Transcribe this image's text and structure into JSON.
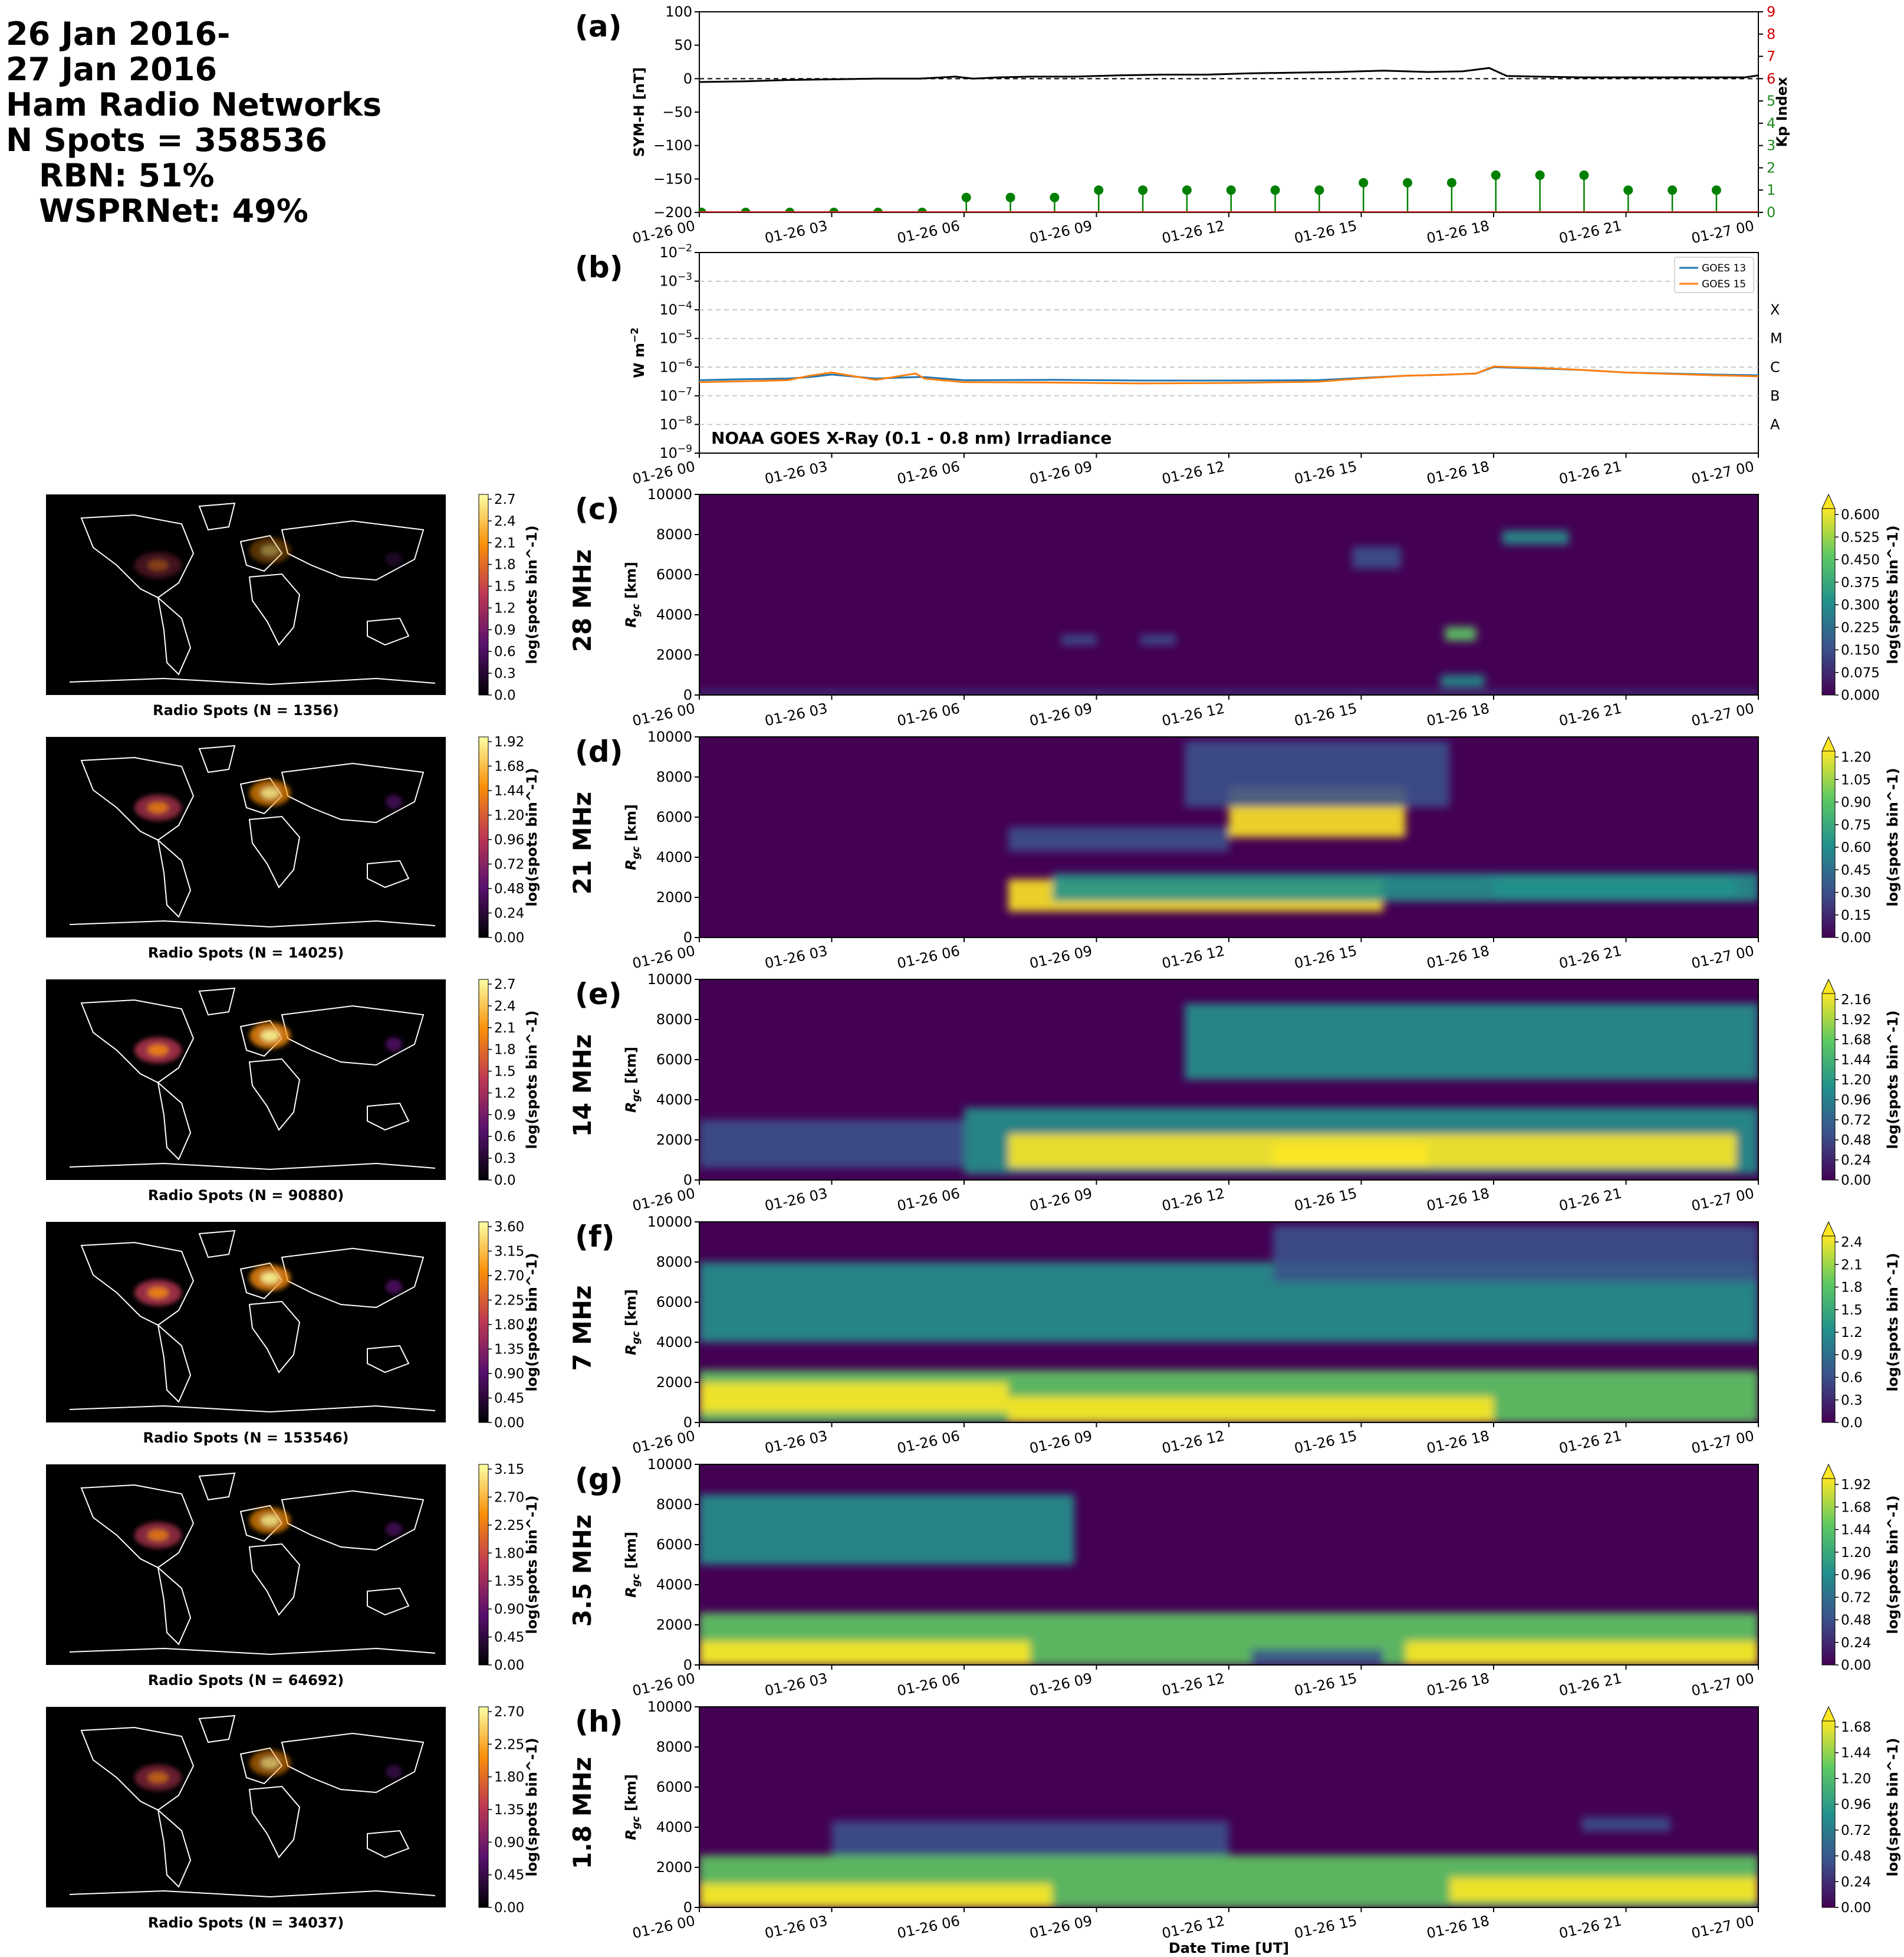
{
  "header": {
    "lines": [
      "26 Jan 2016-",
      "27 Jan 2016",
      "Ham Radio Networks",
      "N Spots = 358536",
      "RBN: 51%",
      "WSPRNet: 49%"
    ]
  },
  "time_axis": {
    "ticks": [
      "01-26 00",
      "01-26 03",
      "01-26 06",
      "01-26 09",
      "01-26 12",
      "01-26 15",
      "01-26 18",
      "01-26 21",
      "01-27 00"
    ],
    "xlabel": "Date Time [UT]"
  },
  "colors": {
    "goes13": "#1f77b4",
    "goes15": "#ff7f0e",
    "kp_stem": "#008000",
    "kp_axis": "#d40000",
    "map_bg": "#000000",
    "coast": "#ffffff"
  },
  "chart_data": [
    {
      "id": "a",
      "type": "line",
      "panel_letter": "(a)",
      "ylabel": "SYM-H [nT]",
      "ylim": [
        -200,
        100
      ],
      "yticks": [
        "100",
        "50",
        "0",
        "−50",
        "−100",
        "−150",
        "−200"
      ],
      "y2label": "Kp Index",
      "y2lim": [
        0,
        9
      ],
      "y2ticks": [
        "0",
        "1",
        "2",
        "3",
        "4",
        "5",
        "6",
        "7",
        "8",
        "9"
      ],
      "symh": {
        "x": [
          0,
          1,
          2,
          3,
          4,
          5,
          5.8,
          6.2,
          6.8,
          7.5,
          8.5,
          9.5,
          10.5,
          11.5,
          12.5,
          13.5,
          14.5,
          15.5,
          16.5,
          17.3,
          17.9,
          18.3,
          19,
          20,
          21,
          22,
          23,
          23.7,
          24
        ],
        "y": [
          -5,
          -4,
          -2,
          -1,
          0,
          0,
          3,
          0,
          2,
          3,
          3,
          5,
          6,
          6,
          8,
          9,
          10,
          12,
          10,
          11,
          16,
          4,
          3,
          2,
          2,
          2,
          2,
          2,
          5
        ]
      },
      "kp": {
        "x": [
          0,
          1,
          2,
          3,
          4,
          5,
          6,
          7,
          8,
          9,
          10,
          11,
          12,
          13,
          14,
          15,
          16,
          17,
          18,
          19,
          20,
          21,
          22,
          23
        ],
        "y": [
          0,
          0,
          0,
          0,
          0,
          0,
          0.67,
          0.67,
          0.67,
          1,
          1,
          1,
          1,
          1,
          1,
          1.33,
          1.33,
          1.33,
          1.67,
          1.67,
          1.67,
          1,
          1,
          1
        ]
      }
    },
    {
      "id": "b",
      "type": "line",
      "panel_letter": "(b)",
      "ylabel": "W m^-2",
      "yscale": "log",
      "ylim": [
        1e-09,
        0.01
      ],
      "yticks": [
        "10^-2",
        "10^-3",
        "10^-4",
        "10^-5",
        "10^-6",
        "10^-7",
        "10^-8",
        "10^-9"
      ],
      "flare_classes": [
        "X",
        "M",
        "C",
        "B",
        "A"
      ],
      "annotation": "NOAA GOES X-Ray (0.1 - 0.8 nm) Irradiance",
      "legend_position": "top-right",
      "series": [
        {
          "name": "GOES 13",
          "x": [
            0,
            1,
            2,
            2.5,
            3,
            4,
            4.9,
            5.1,
            6,
            8,
            10,
            12,
            14,
            15,
            16,
            17,
            17.6,
            18,
            19,
            20,
            21,
            22,
            23,
            24
          ],
          "y": [
            3.5e-07,
            3.8e-07,
            4e-07,
            4.5e-07,
            5.5e-07,
            4e-07,
            4.5e-07,
            4.5e-07,
            3.5e-07,
            3.6e-07,
            3.4e-07,
            3.4e-07,
            3.5e-07,
            4.2e-07,
            5e-07,
            5.5e-07,
            6e-07,
            1e-06,
            9e-07,
            8e-07,
            6.5e-07,
            6e-07,
            5.5e-07,
            5.2e-07
          ]
        },
        {
          "name": "GOES 15",
          "x": [
            0,
            1,
            2,
            2.5,
            3,
            4,
            4.9,
            5.1,
            6,
            8,
            10,
            12,
            14,
            15,
            16,
            17,
            17.6,
            18,
            19,
            20,
            21,
            22,
            23,
            24
          ],
          "y": [
            3e-07,
            3.2e-07,
            3.5e-07,
            5e-07,
            6.5e-07,
            3.6e-07,
            6e-07,
            4e-07,
            3e-07,
            2.9e-07,
            2.7e-07,
            2.8e-07,
            3.1e-07,
            4e-07,
            5e-07,
            5.5e-07,
            6e-07,
            1.05e-06,
            9.5e-07,
            8e-07,
            6.5e-07,
            5.8e-07,
            5.2e-07,
            4.8e-07
          ]
        }
      ]
    },
    {
      "id": "c",
      "type": "heatmap",
      "panel_letter": "(c)",
      "band": "28 MHz",
      "ylabel": "R_gc [km]",
      "ylim": [
        0,
        10000
      ],
      "yticks": [
        "0",
        "2000",
        "4000",
        "6000",
        "8000",
        "10000"
      ],
      "cbar_label": "log(spots bin^-1)",
      "cbar_ticks": [
        "0.000",
        "0.075",
        "0.150",
        "0.225",
        "0.300",
        "0.375",
        "0.450",
        "0.525",
        "0.600"
      ],
      "cbar_extend": "max",
      "map_caption": "Radio Spots (N = 1356)",
      "map_cbar_ticks": [
        "0.0",
        "0.3",
        "0.6",
        "0.9",
        "1.2",
        "1.5",
        "1.8",
        "2.1",
        "2.4",
        "2.7"
      ]
    },
    {
      "id": "d",
      "type": "heatmap",
      "panel_letter": "(d)",
      "band": "21 MHz",
      "ylabel": "R_gc [km]",
      "ylim": [
        0,
        10000
      ],
      "yticks": [
        "0",
        "2000",
        "4000",
        "6000",
        "8000",
        "10000"
      ],
      "cbar_label": "log(spots bin^-1)",
      "cbar_ticks": [
        "0.00",
        "0.15",
        "0.30",
        "0.45",
        "0.60",
        "0.75",
        "0.90",
        "1.05",
        "1.20"
      ],
      "cbar_extend": "max",
      "map_caption": "Radio Spots (N = 14025)",
      "map_cbar_ticks": [
        "0.00",
        "0.24",
        "0.48",
        "0.72",
        "0.96",
        "1.20",
        "1.44",
        "1.68",
        "1.92"
      ]
    },
    {
      "id": "e",
      "type": "heatmap",
      "panel_letter": "(e)",
      "band": "14 MHz",
      "ylabel": "R_gc [km]",
      "ylim": [
        0,
        10000
      ],
      "yticks": [
        "0",
        "2000",
        "4000",
        "6000",
        "8000",
        "10000"
      ],
      "cbar_label": "log(spots bin^-1)",
      "cbar_ticks": [
        "0.00",
        "0.24",
        "0.48",
        "0.72",
        "0.96",
        "1.20",
        "1.44",
        "1.68",
        "1.92",
        "2.16"
      ],
      "cbar_extend": "max",
      "map_caption": "Radio Spots (N = 90880)",
      "map_cbar_ticks": [
        "0.0",
        "0.3",
        "0.6",
        "0.9",
        "1.2",
        "1.5",
        "1.8",
        "2.1",
        "2.4",
        "2.7"
      ]
    },
    {
      "id": "f",
      "type": "heatmap",
      "panel_letter": "(f)",
      "band": "7 MHz",
      "ylabel": "R_gc [km]",
      "ylim": [
        0,
        10000
      ],
      "yticks": [
        "0",
        "2000",
        "4000",
        "6000",
        "8000",
        "10000"
      ],
      "cbar_label": "log(spots bin^-1)",
      "cbar_ticks": [
        "0.0",
        "0.3",
        "0.6",
        "0.9",
        "1.2",
        "1.5",
        "1.8",
        "2.1",
        "2.4"
      ],
      "cbar_extend": "max",
      "map_caption": "Radio Spots (N = 153546)",
      "map_cbar_ticks": [
        "0.00",
        "0.45",
        "0.90",
        "1.35",
        "1.80",
        "2.25",
        "2.70",
        "3.15",
        "3.60"
      ]
    },
    {
      "id": "g",
      "type": "heatmap",
      "panel_letter": "(g)",
      "band": "3.5 MHz",
      "ylabel": "R_gc [km]",
      "ylim": [
        0,
        10000
      ],
      "yticks": [
        "0",
        "2000",
        "4000",
        "6000",
        "8000",
        "10000"
      ],
      "cbar_label": "log(spots bin^-1)",
      "cbar_ticks": [
        "0.00",
        "0.24",
        "0.48",
        "0.72",
        "0.96",
        "1.20",
        "1.44",
        "1.68",
        "1.92"
      ],
      "cbar_extend": "max",
      "map_caption": "Radio Spots (N = 64692)",
      "map_cbar_ticks": [
        "0.00",
        "0.45",
        "0.90",
        "1.35",
        "1.80",
        "2.25",
        "2.70",
        "3.15"
      ]
    },
    {
      "id": "h",
      "type": "heatmap",
      "panel_letter": "(h)",
      "band": "1.8 MHz",
      "ylabel": "R_gc [km]",
      "ylim": [
        0,
        10000
      ],
      "yticks": [
        "0",
        "2000",
        "4000",
        "6000",
        "8000",
        "10000"
      ],
      "cbar_label": "log(spots bin^-1)",
      "cbar_ticks": [
        "0.00",
        "0.24",
        "0.48",
        "0.72",
        "0.96",
        "1.20",
        "1.44",
        "1.68"
      ],
      "cbar_extend": "max",
      "map_caption": "Radio Spots (N = 34037)",
      "map_cbar_ticks": [
        "0.00",
        "0.45",
        "0.90",
        "1.35",
        "1.80",
        "2.25",
        "2.70"
      ]
    }
  ]
}
